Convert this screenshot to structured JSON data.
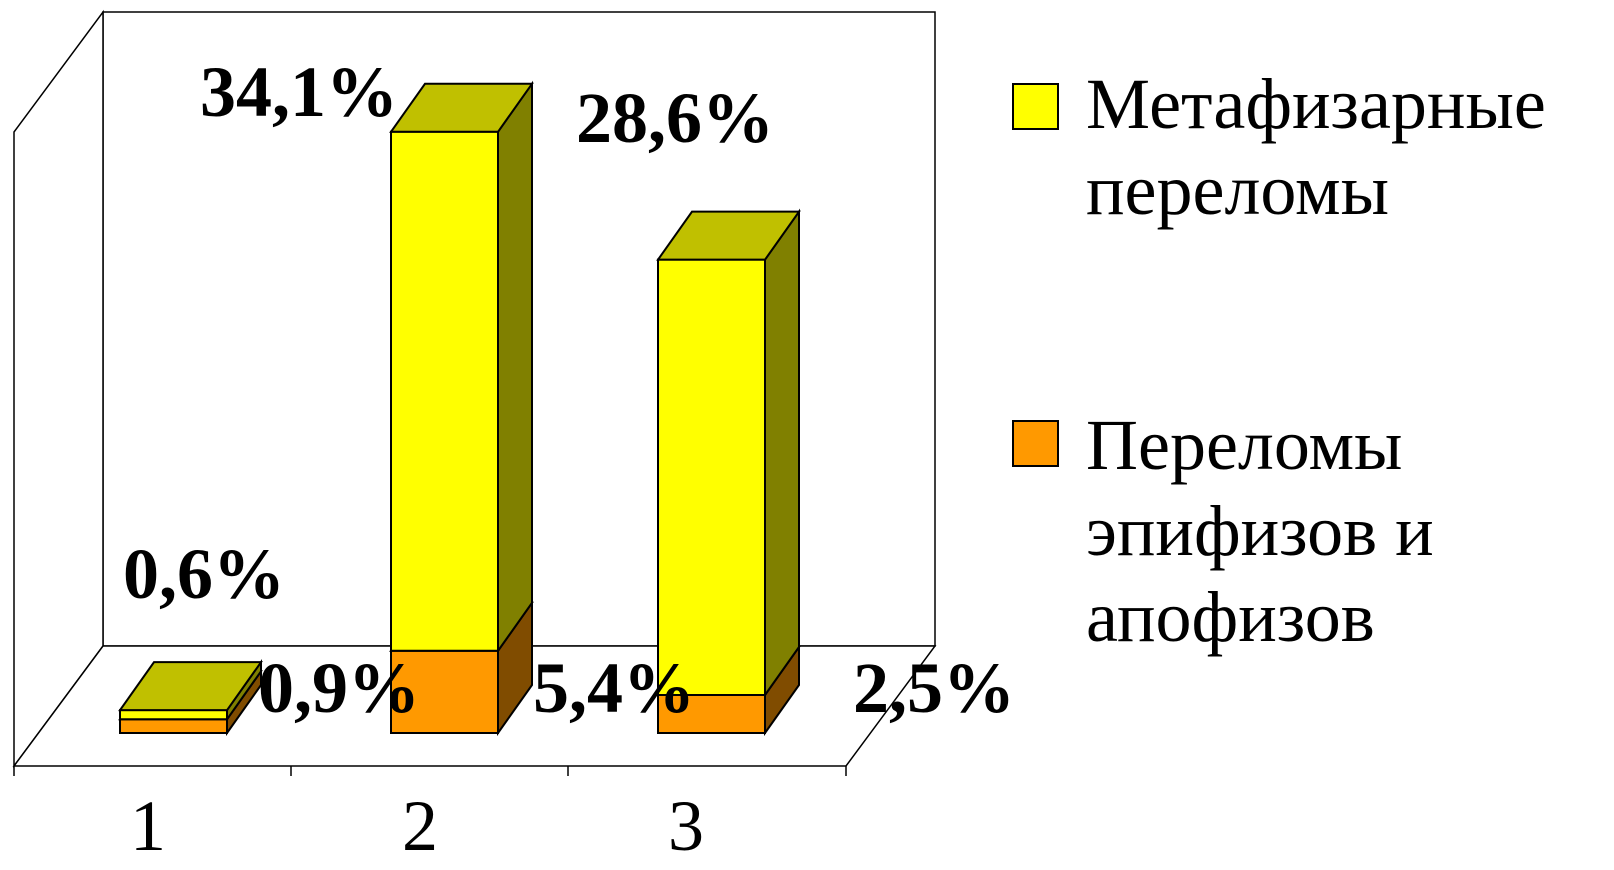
{
  "chart_data": {
    "type": "bar",
    "stacked": true,
    "three_d": true,
    "categories": [
      "1",
      "2",
      "3"
    ],
    "series": [
      {
        "name": "Переломы эпифизов и апофизов",
        "values": [
          0.9,
          5.4,
          2.5
        ],
        "labels": [
          "0,9%",
          "5,4%",
          "2,5%"
        ],
        "colors": {
          "front": "#FF9900",
          "side": "#804C00",
          "top": "#C07300"
        }
      },
      {
        "name": "Метафизарные переломы",
        "values": [
          0.6,
          34.1,
          28.6
        ],
        "labels": [
          "0,6%",
          "34,1%",
          "28,6%"
        ],
        "colors": {
          "front": "#FFFF00",
          "side": "#808000",
          "top": "#C0C000"
        }
      }
    ],
    "legend": {
      "position": "right",
      "entries": [
        {
          "lines": [
            "Метафизарные",
            "переломы"
          ],
          "color": "#FFFF00"
        },
        {
          "lines": [
            "Переломы",
            "эпифизов и",
            "апофизов"
          ],
          "color": "#FF9900"
        }
      ]
    },
    "ylim": [
      0,
      40
    ],
    "grid": false
  }
}
